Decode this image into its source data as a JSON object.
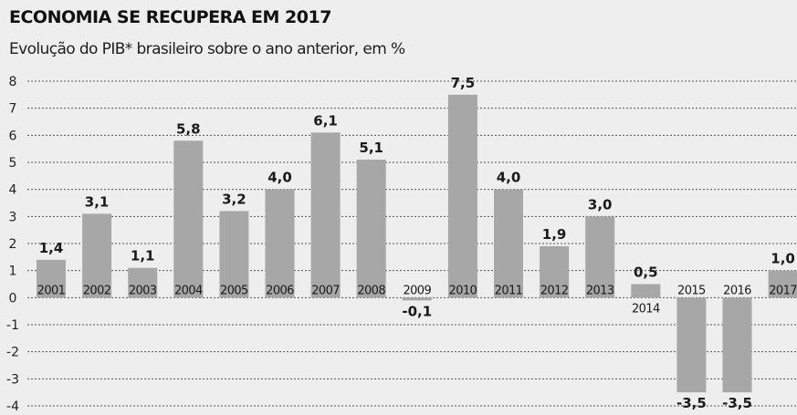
{
  "header": {
    "title": "ECONOMIA SE RECUPERA EM 2017",
    "subtitle": "Evolução do PIB* brasileiro sobre o ano anterior, em %"
  },
  "chart_data": {
    "type": "bar",
    "title": "ECONOMIA SE RECUPERA EM 2017",
    "subtitle": "Evolução do PIB* brasileiro sobre o ano anterior, em %",
    "xlabel": "",
    "ylabel": "",
    "categories": [
      "2001",
      "2002",
      "2003",
      "2004",
      "2005",
      "2006",
      "2007",
      "2008",
      "2009",
      "2010",
      "2011",
      "2012",
      "2013",
      "2014",
      "2015",
      "2016",
      "2017"
    ],
    "values": [
      1.4,
      3.1,
      1.1,
      5.8,
      3.2,
      4.0,
      6.1,
      5.1,
      -0.1,
      7.5,
      4.0,
      1.9,
      3.0,
      0.5,
      -3.5,
      -3.5,
      1.0
    ],
    "value_labels": [
      "1,4",
      "3,1",
      "1,1",
      "5,8",
      "3,2",
      "4,0",
      "6,1",
      "5,1",
      "-0,1",
      "7,5",
      "4,0",
      "1,9",
      "3,0",
      "0,5",
      "-3,5",
      "-3,5",
      "1,0"
    ],
    "ylim": [
      -4,
      8
    ],
    "yticks": [
      "8",
      "7",
      "6",
      "5",
      "4",
      "3",
      "2",
      "1",
      "0",
      "-1",
      "-2",
      "-3",
      "-4"
    ],
    "grid": true,
    "colors": {
      "bar": "#a7a7a7",
      "grid": "#555555",
      "background": "#eeeeee"
    }
  }
}
